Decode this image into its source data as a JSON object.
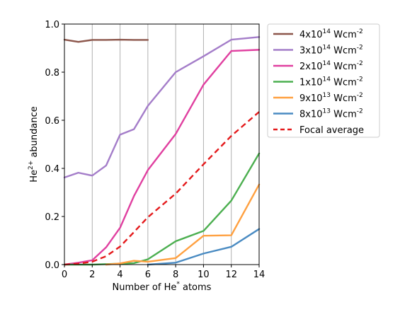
{
  "chart_data": {
    "type": "line",
    "xlabel": {
      "base": "Number of He",
      "sup": "*",
      "rest": " atoms"
    },
    "ylabel": {
      "base": "He",
      "sup": "2+",
      "rest": " abundance"
    },
    "xlim": [
      0,
      14
    ],
    "ylim": [
      0,
      1.0
    ],
    "xticks": [
      0,
      2,
      4,
      6,
      8,
      10,
      12,
      14
    ],
    "xtick_labels": [
      "0",
      "2",
      "4",
      "6",
      "8",
      "10",
      "12",
      "14"
    ],
    "yticks": [
      0,
      0.2,
      0.4,
      0.6,
      0.8,
      1.0
    ],
    "ytick_labels": [
      "0.0",
      "0.2",
      "0.4",
      "0.6",
      "0.8",
      "1.0"
    ],
    "grid_x": true,
    "grid_y": false,
    "legend_position": "outside-right",
    "series": [
      {
        "name": "4x10",
        "sup": "14",
        "unit": " Wcm",
        "unit_sup": "-2",
        "color": "#8c564b",
        "dash": false,
        "x": [
          0,
          1,
          2,
          3,
          4,
          5,
          6
        ],
        "y": [
          0.935,
          0.926,
          0.934,
          0.934,
          0.935,
          0.934,
          0.934
        ]
      },
      {
        "name": "3x10",
        "sup": "14",
        "unit": " Wcm",
        "unit_sup": "-2",
        "color": "#a47dc9",
        "dash": false,
        "x": [
          0,
          1,
          2,
          3,
          4,
          5,
          6,
          8,
          10,
          12,
          14
        ],
        "y": [
          0.362,
          0.382,
          0.37,
          0.412,
          0.54,
          0.563,
          0.66,
          0.8,
          0.866,
          0.935,
          0.946
        ]
      },
      {
        "name": "2x10",
        "sup": "14",
        "unit": " Wcm",
        "unit_sup": "-2",
        "color": "#e040a0",
        "dash": false,
        "x": [
          0,
          1,
          2,
          3,
          4,
          5,
          6,
          8,
          10,
          12,
          14
        ],
        "y": [
          0.0,
          0.008,
          0.018,
          0.072,
          0.153,
          0.285,
          0.393,
          0.543,
          0.748,
          0.888,
          0.893
        ]
      },
      {
        "name": "1x10",
        "sup": "14",
        "unit": " Wcm",
        "unit_sup": "-2",
        "color": "#4caf50",
        "dash": false,
        "x": [
          0,
          2,
          4,
          5,
          6,
          8,
          10,
          12,
          14
        ],
        "y": [
          0.0,
          0.0,
          0.004,
          0.006,
          0.022,
          0.097,
          0.14,
          0.266,
          0.462
        ]
      },
      {
        "name": "9x10",
        "sup": "13",
        "unit": " Wcm",
        "unit_sup": "-2",
        "color": "#ffa040",
        "dash": false,
        "x": [
          3,
          4,
          5,
          6,
          8,
          10,
          12,
          14
        ],
        "y": [
          0.0,
          0.005,
          0.016,
          0.012,
          0.027,
          0.12,
          0.122,
          0.333
        ]
      },
      {
        "name": "8x10",
        "sup": "13",
        "unit": " Wcm",
        "unit_sup": "-2",
        "color": "#4a8bc2",
        "dash": false,
        "x": [
          6,
          8,
          10,
          12,
          14
        ],
        "y": [
          0.0,
          0.008,
          0.046,
          0.074,
          0.148
        ]
      },
      {
        "name": "Focal average",
        "sup": "",
        "unit": "",
        "unit_sup": "",
        "color": "#e41a1c",
        "dash": true,
        "x": [
          0,
          1,
          2,
          3,
          4,
          5,
          6,
          8,
          10,
          12,
          14
        ],
        "y": [
          0.0,
          0.004,
          0.012,
          0.035,
          0.075,
          0.135,
          0.197,
          0.295,
          0.417,
          0.535,
          0.635
        ]
      }
    ]
  }
}
